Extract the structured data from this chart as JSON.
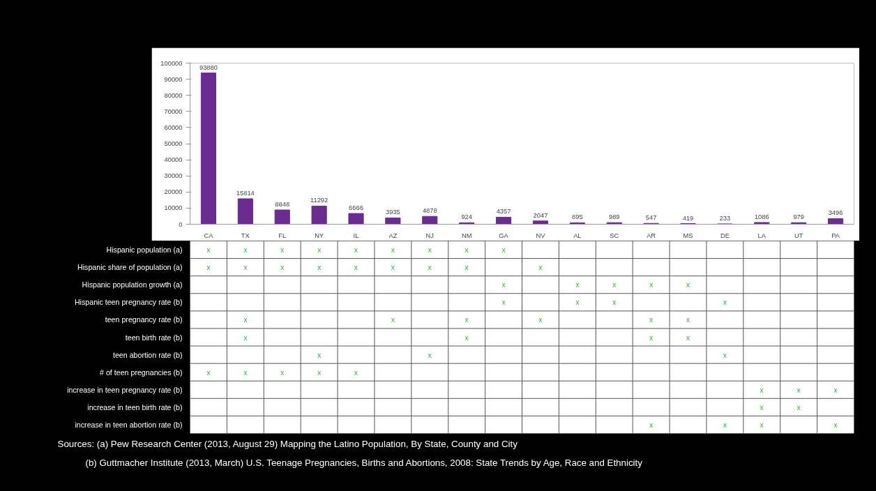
{
  "chart_data": [
    {
      "type": "bar",
      "categories": [
        "CA",
        "TX",
        "FL",
        "NY",
        "IL",
        "AZ",
        "NJ",
        "NM",
        "GA",
        "NV",
        "AL",
        "SC",
        "AR",
        "MS",
        "DE",
        "LA",
        "UT",
        "PA"
      ],
      "values": [
        93880,
        15814,
        8848,
        11292,
        6666,
        3935,
        4878,
        924,
        4357,
        2047,
        895,
        989,
        547,
        419,
        233,
        1086,
        979,
        3496
      ],
      "color": "#6b2c91",
      "ylim": [
        0,
        100000
      ],
      "yticks": [
        0,
        10000,
        20000,
        30000,
        40000,
        50000,
        60000,
        70000,
        80000,
        90000,
        100000
      ],
      "data_labels": true,
      "grid": false
    },
    {
      "type": "other",
      "y_categories": [
        "Hispanic population (a)",
        "Hispanic share of population (a)",
        "Hispanic population growth (a)",
        "Hispanic teen pregnancy rate (b)",
        "teen pregnancy rate (b)",
        "teen birth rate (b)",
        "teen abortion rate (b)",
        "# of teen pregnancies (b)",
        "increase in teen pregnancy rate (b)",
        "increase in teen birth rate (b)",
        "increase in teen abortion rate (b)"
      ],
      "cell_labels": [
        [
          "x",
          "x",
          "x",
          "x",
          "x",
          "x",
          "x",
          "x",
          "x",
          null,
          null,
          null,
          null,
          null,
          null,
          null,
          null,
          null
        ],
        [
          "x",
          "x",
          "x",
          "x",
          "x",
          "x",
          "x",
          "x",
          null,
          "x",
          null,
          null,
          null,
          null,
          null,
          null,
          null,
          null
        ],
        [
          null,
          null,
          null,
          null,
          null,
          null,
          null,
          null,
          "x",
          null,
          "x",
          "x",
          "x",
          "x",
          null,
          null,
          null,
          null
        ],
        [
          null,
          null,
          null,
          null,
          null,
          null,
          null,
          null,
          "x",
          null,
          "x",
          "x",
          null,
          null,
          "x",
          null,
          null,
          null
        ],
        [
          null,
          "x",
          null,
          null,
          null,
          "x",
          null,
          "x",
          null,
          "x",
          null,
          null,
          "x",
          "x",
          null,
          null,
          null,
          null
        ],
        [
          null,
          "x",
          null,
          null,
          null,
          null,
          null,
          "x",
          null,
          null,
          null,
          null,
          "x",
          "x",
          null,
          null,
          null,
          null
        ],
        [
          null,
          null,
          null,
          "x",
          null,
          null,
          "x",
          null,
          null,
          null,
          null,
          null,
          null,
          null,
          "x",
          null,
          null,
          null
        ],
        [
          "x",
          "x",
          "x",
          "x",
          "x",
          null,
          null,
          null,
          null,
          null,
          null,
          null,
          null,
          null,
          null,
          null,
          null,
          null
        ],
        [
          null,
          null,
          null,
          null,
          null,
          null,
          null,
          null,
          null,
          null,
          null,
          null,
          null,
          null,
          null,
          "x",
          "x",
          "x"
        ],
        [
          null,
          null,
          null,
          null,
          null,
          null,
          null,
          null,
          null,
          null,
          null,
          null,
          null,
          null,
          null,
          "x",
          "x",
          null
        ],
        [
          null,
          null,
          null,
          null,
          null,
          null,
          null,
          null,
          null,
          null,
          null,
          null,
          "x",
          null,
          "x",
          "x",
          null,
          "x"
        ]
      ],
      "annotations": [
        "Sources: (a) Pew Research Center (2013, August 29) Mapping the Latino Population, By State, County and City",
        "(b) Guttmacher Institute (2013, March) U.S. Teenage Pregnancies, Births and Abortions, 2008: State Trends by Age, Race and Ethnicity"
      ]
    }
  ]
}
